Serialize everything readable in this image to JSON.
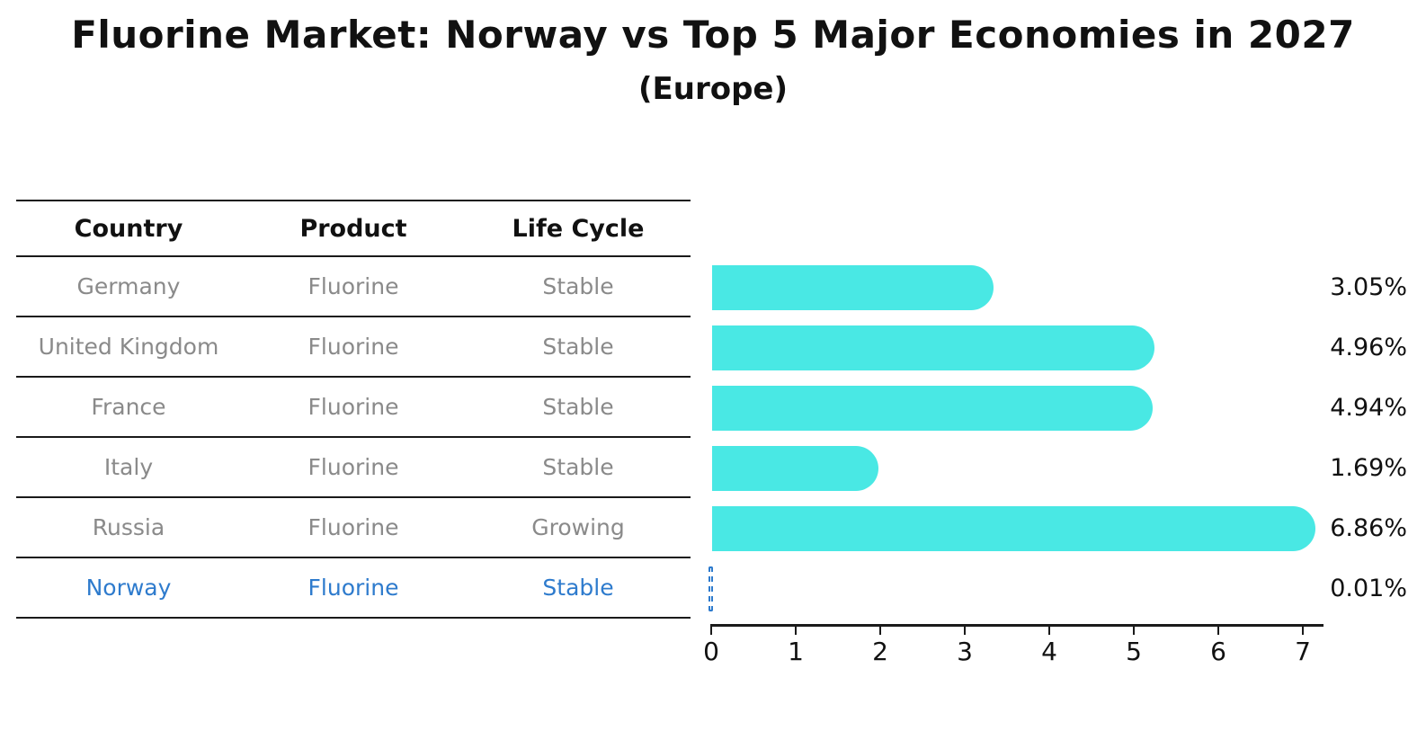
{
  "chart_data": {
    "type": "bar",
    "orientation": "horizontal",
    "title": "Fluorine Market: Norway vs Top 5 Major Economies in 2027",
    "subtitle": "(Europe)",
    "categories": [
      "Germany",
      "United Kingdom",
      "France",
      "Italy",
      "Russia",
      "Norway"
    ],
    "values": [
      3.05,
      4.96,
      4.94,
      1.69,
      6.86,
      0.01
    ],
    "value_labels": [
      "3.05%",
      "4.96%",
      "4.94%",
      "1.69%",
      "6.86%",
      "0.01%"
    ],
    "xlim": [
      0,
      7
    ],
    "x_ticks": [
      "0",
      "1",
      "2",
      "3",
      "4",
      "5",
      "6",
      "7"
    ],
    "grid": false,
    "legend": false,
    "bar_color": "#49E8E4",
    "highlight_color": "#2E7BCD",
    "highlight_category": "Norway",
    "highlight_style": "dashed-outline",
    "axis_color": "#1a1a1a",
    "label_color": "#111111"
  },
  "table": {
    "headers": [
      "Country",
      "Product",
      "Life Cycle"
    ],
    "rows": [
      {
        "country": "Germany",
        "product": "Fluorine",
        "life_cycle": "Stable",
        "highlighted": false
      },
      {
        "country": "United Kingdom",
        "product": "Fluorine",
        "life_cycle": "Stable",
        "highlighted": false
      },
      {
        "country": "France",
        "product": "Fluorine",
        "life_cycle": "Stable",
        "highlighted": false
      },
      {
        "country": "Italy",
        "product": "Fluorine",
        "life_cycle": "Stable",
        "highlighted": false
      },
      {
        "country": "Russia",
        "product": "Fluorine",
        "life_cycle": "Growing",
        "highlighted": false
      },
      {
        "country": "Norway",
        "product": "Fluorine",
        "life_cycle": "Stable",
        "highlighted": true
      }
    ],
    "text_color": "#8A8A8A",
    "header_color": "#111111"
  }
}
